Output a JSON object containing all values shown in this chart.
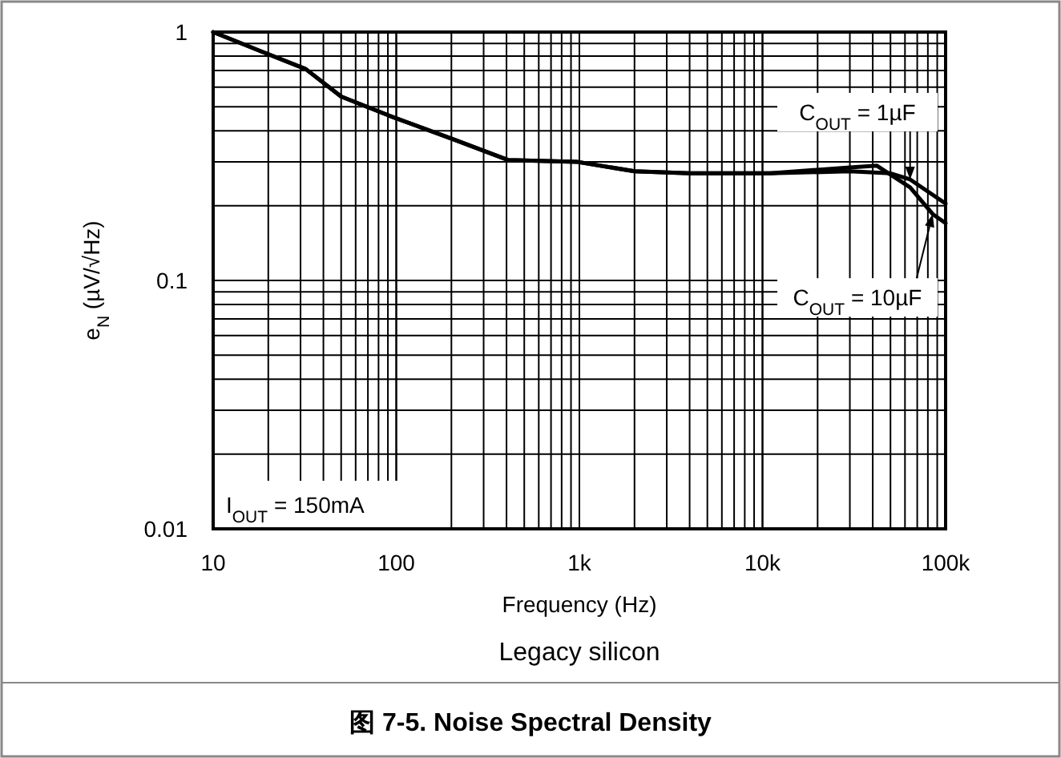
{
  "chart_data": {
    "type": "line",
    "title": "图 7-5. Noise Spectral Density",
    "xlabel": "Frequency (Hz)",
    "ylabel": "e$_{N}$ (µV/√Hz)",
    "log": "xy",
    "grid": true,
    "xlim": [
      10,
      100000
    ],
    "ylim": [
      0.01,
      1
    ],
    "xticks": [
      10,
      100,
      {
        "value": 1000,
        "label": "1k"
      },
      {
        "value": 10000,
        "label": "10k"
      },
      {
        "value": 100000,
        "label": "100k"
      }
    ],
    "yticks": [
      0.01,
      0.1,
      1
    ],
    "series": [
      {
        "color": "#000000",
        "x": [
          10,
          18,
          32,
          50,
          92,
          205,
          410,
          980,
          2000,
          4000,
          11000,
          30000,
          50000,
          64000,
          100000
        ],
        "values": [
          1.0,
          0.84,
          0.71,
          0.55,
          0.46,
          0.37,
          0.305,
          0.3,
          0.275,
          0.27,
          0.27,
          0.275,
          0.27,
          0.255,
          0.204
        ]
      },
      {
        "color": "#000000",
        "x": [
          10,
          18,
          32,
          50,
          92,
          205,
          410,
          980,
          2000,
          4000,
          11000,
          30000,
          42000,
          64000,
          85000,
          100000
        ],
        "values": [
          1.0,
          0.84,
          0.71,
          0.55,
          0.46,
          0.37,
          0.305,
          0.3,
          0.275,
          0.27,
          0.27,
          0.285,
          0.29,
          0.237,
          0.185,
          0.17
        ]
      }
    ],
    "annotations": [
      {
        "text": "C$_{OUT}$ = 1µF",
        "x": 64000,
        "y": 0.255
      },
      {
        "text": "C$_{OUT}$ = 10µF",
        "x": 85000,
        "y": 0.185
      },
      "I$_{OUT}$ = 150mA",
      "Legacy silicon"
    ]
  }
}
